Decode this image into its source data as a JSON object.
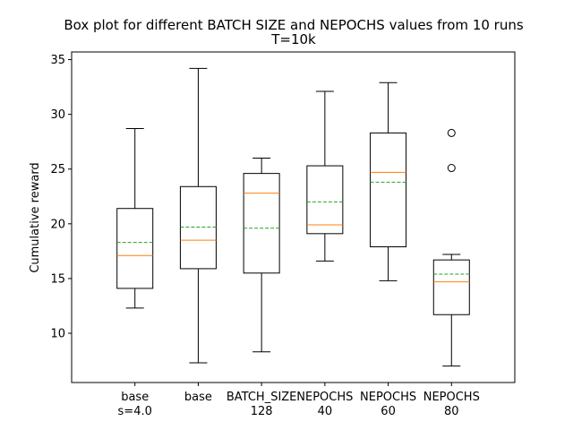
{
  "chart_data": {
    "type": "box",
    "title_line1": "Box plot for different BATCH SIZE and NEPOCHS values from 10 runs",
    "title_line2": "T=10k",
    "xlabel": "",
    "ylabel": "Cumulative reward",
    "ylim": [
      5.5,
      35.7
    ],
    "yticks": [
      10,
      15,
      20,
      25,
      30,
      35
    ],
    "grid": false,
    "colors": {
      "box": "#000000",
      "median": "#ff7f0e",
      "mean": "#2ca02c"
    },
    "boxes": [
      {
        "label_line1": "base",
        "label_line2": "s=4.0",
        "whisker_low": 12.3,
        "q1": 14.1,
        "median": 17.1,
        "mean": 18.3,
        "q3": 21.4,
        "whisker_high": 28.7,
        "outliers": []
      },
      {
        "label_line1": "base",
        "label_line2": "",
        "whisker_low": 7.3,
        "q1": 15.9,
        "median": 18.5,
        "mean": 19.7,
        "q3": 23.4,
        "whisker_high": 34.2,
        "outliers": []
      },
      {
        "label_line1": "BATCH_SIZE",
        "label_line2": "128",
        "whisker_low": 8.3,
        "q1": 15.5,
        "median": 22.8,
        "mean": 19.6,
        "q3": 24.6,
        "whisker_high": 26.0,
        "outliers": []
      },
      {
        "label_line1": "NEPOCHS",
        "label_line2": "40",
        "whisker_low": 16.6,
        "q1": 19.1,
        "median": 19.9,
        "mean": 22.0,
        "q3": 25.3,
        "whisker_high": 32.1,
        "outliers": []
      },
      {
        "label_line1": "NEPOCHS",
        "label_line2": "60",
        "whisker_low": 14.8,
        "q1": 17.9,
        "median": 24.7,
        "mean": 23.8,
        "q3": 28.3,
        "whisker_high": 32.9,
        "outliers": []
      },
      {
        "label_line1": "NEPOCHS",
        "label_line2": "80",
        "whisker_low": 7.0,
        "q1": 11.7,
        "median": 14.7,
        "mean": 15.4,
        "q3": 16.7,
        "whisker_high": 17.2,
        "outliers": [
          28.3,
          25.1
        ]
      }
    ]
  }
}
